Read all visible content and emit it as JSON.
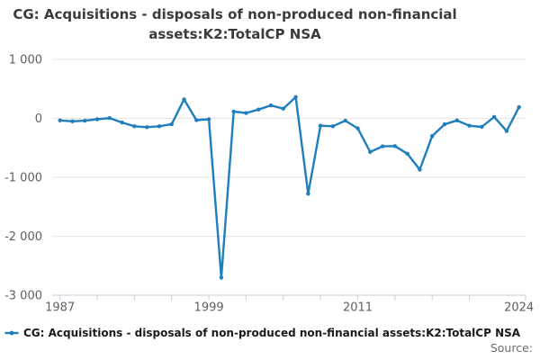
{
  "title": {
    "line1": "CG: Acquisitions - disposals of non-produced non-financial",
    "line2": "assets:K2:TotalCP NSA"
  },
  "legend": {
    "series_label": "CG: Acquisitions - disposals of non-produced non-financial assets:K2:TotalCP NSA"
  },
  "source_label": "Source:",
  "colors": {
    "line": "#1f7ebe",
    "grid": "#e5e5e5",
    "axis": "#c3cfdc",
    "ticklabel": "#606060",
    "title": "#3b3b3b",
    "legend": "#1a1a1a",
    "source": "#6e6e6e"
  },
  "chart_data": {
    "type": "line",
    "title": "CG: Acquisitions - disposals of non-produced non-financial assets:K2:TotalCP NSA",
    "xlabel": "",
    "ylabel": "",
    "grid": "horizontal",
    "legend_position": "bottom-left",
    "ylim": [
      -3000,
      1000
    ],
    "yticks": [
      1000,
      0,
      -1000,
      -2000,
      -3000
    ],
    "ytick_labels": [
      "1 000",
      "0",
      "-1 000",
      "-2 000",
      "-3 000"
    ],
    "xticks_minor_years": [
      1987,
      1990,
      1993,
      1996,
      1999,
      2002,
      2005,
      2008,
      2011,
      2014,
      2017,
      2020
    ],
    "axis_end_tick": true,
    "xtick_labels": [
      1987,
      1999,
      2011,
      2024
    ],
    "x": [
      1987,
      1988,
      1989,
      1990,
      1991,
      1992,
      1993,
      1994,
      1995,
      1996,
      1997,
      1998,
      1999,
      2000,
      2001,
      2002,
      2003,
      2004,
      2005,
      2006,
      2007,
      2008,
      2009,
      2010,
      2011,
      2012,
      2013,
      2014,
      2015,
      2016,
      2017,
      2018,
      2019,
      2020,
      2021,
      2022,
      2023,
      2024
    ],
    "series": [
      {
        "name": "CG: Acquisitions - disposals of non-produced non-financial assets:K2:TotalCP NSA",
        "color": "#1f7ebe",
        "values": [
          -35,
          -50,
          -40,
          -15,
          5,
          -70,
          -135,
          -150,
          -135,
          -100,
          320,
          -30,
          -15,
          -2700,
          115,
          90,
          150,
          220,
          165,
          360,
          -1280,
          -125,
          -135,
          -40,
          -170,
          -570,
          -475,
          -470,
          -600,
          -870,
          -300,
          -100,
          -35,
          -125,
          -145,
          25,
          -215,
          190
        ]
      }
    ]
  }
}
